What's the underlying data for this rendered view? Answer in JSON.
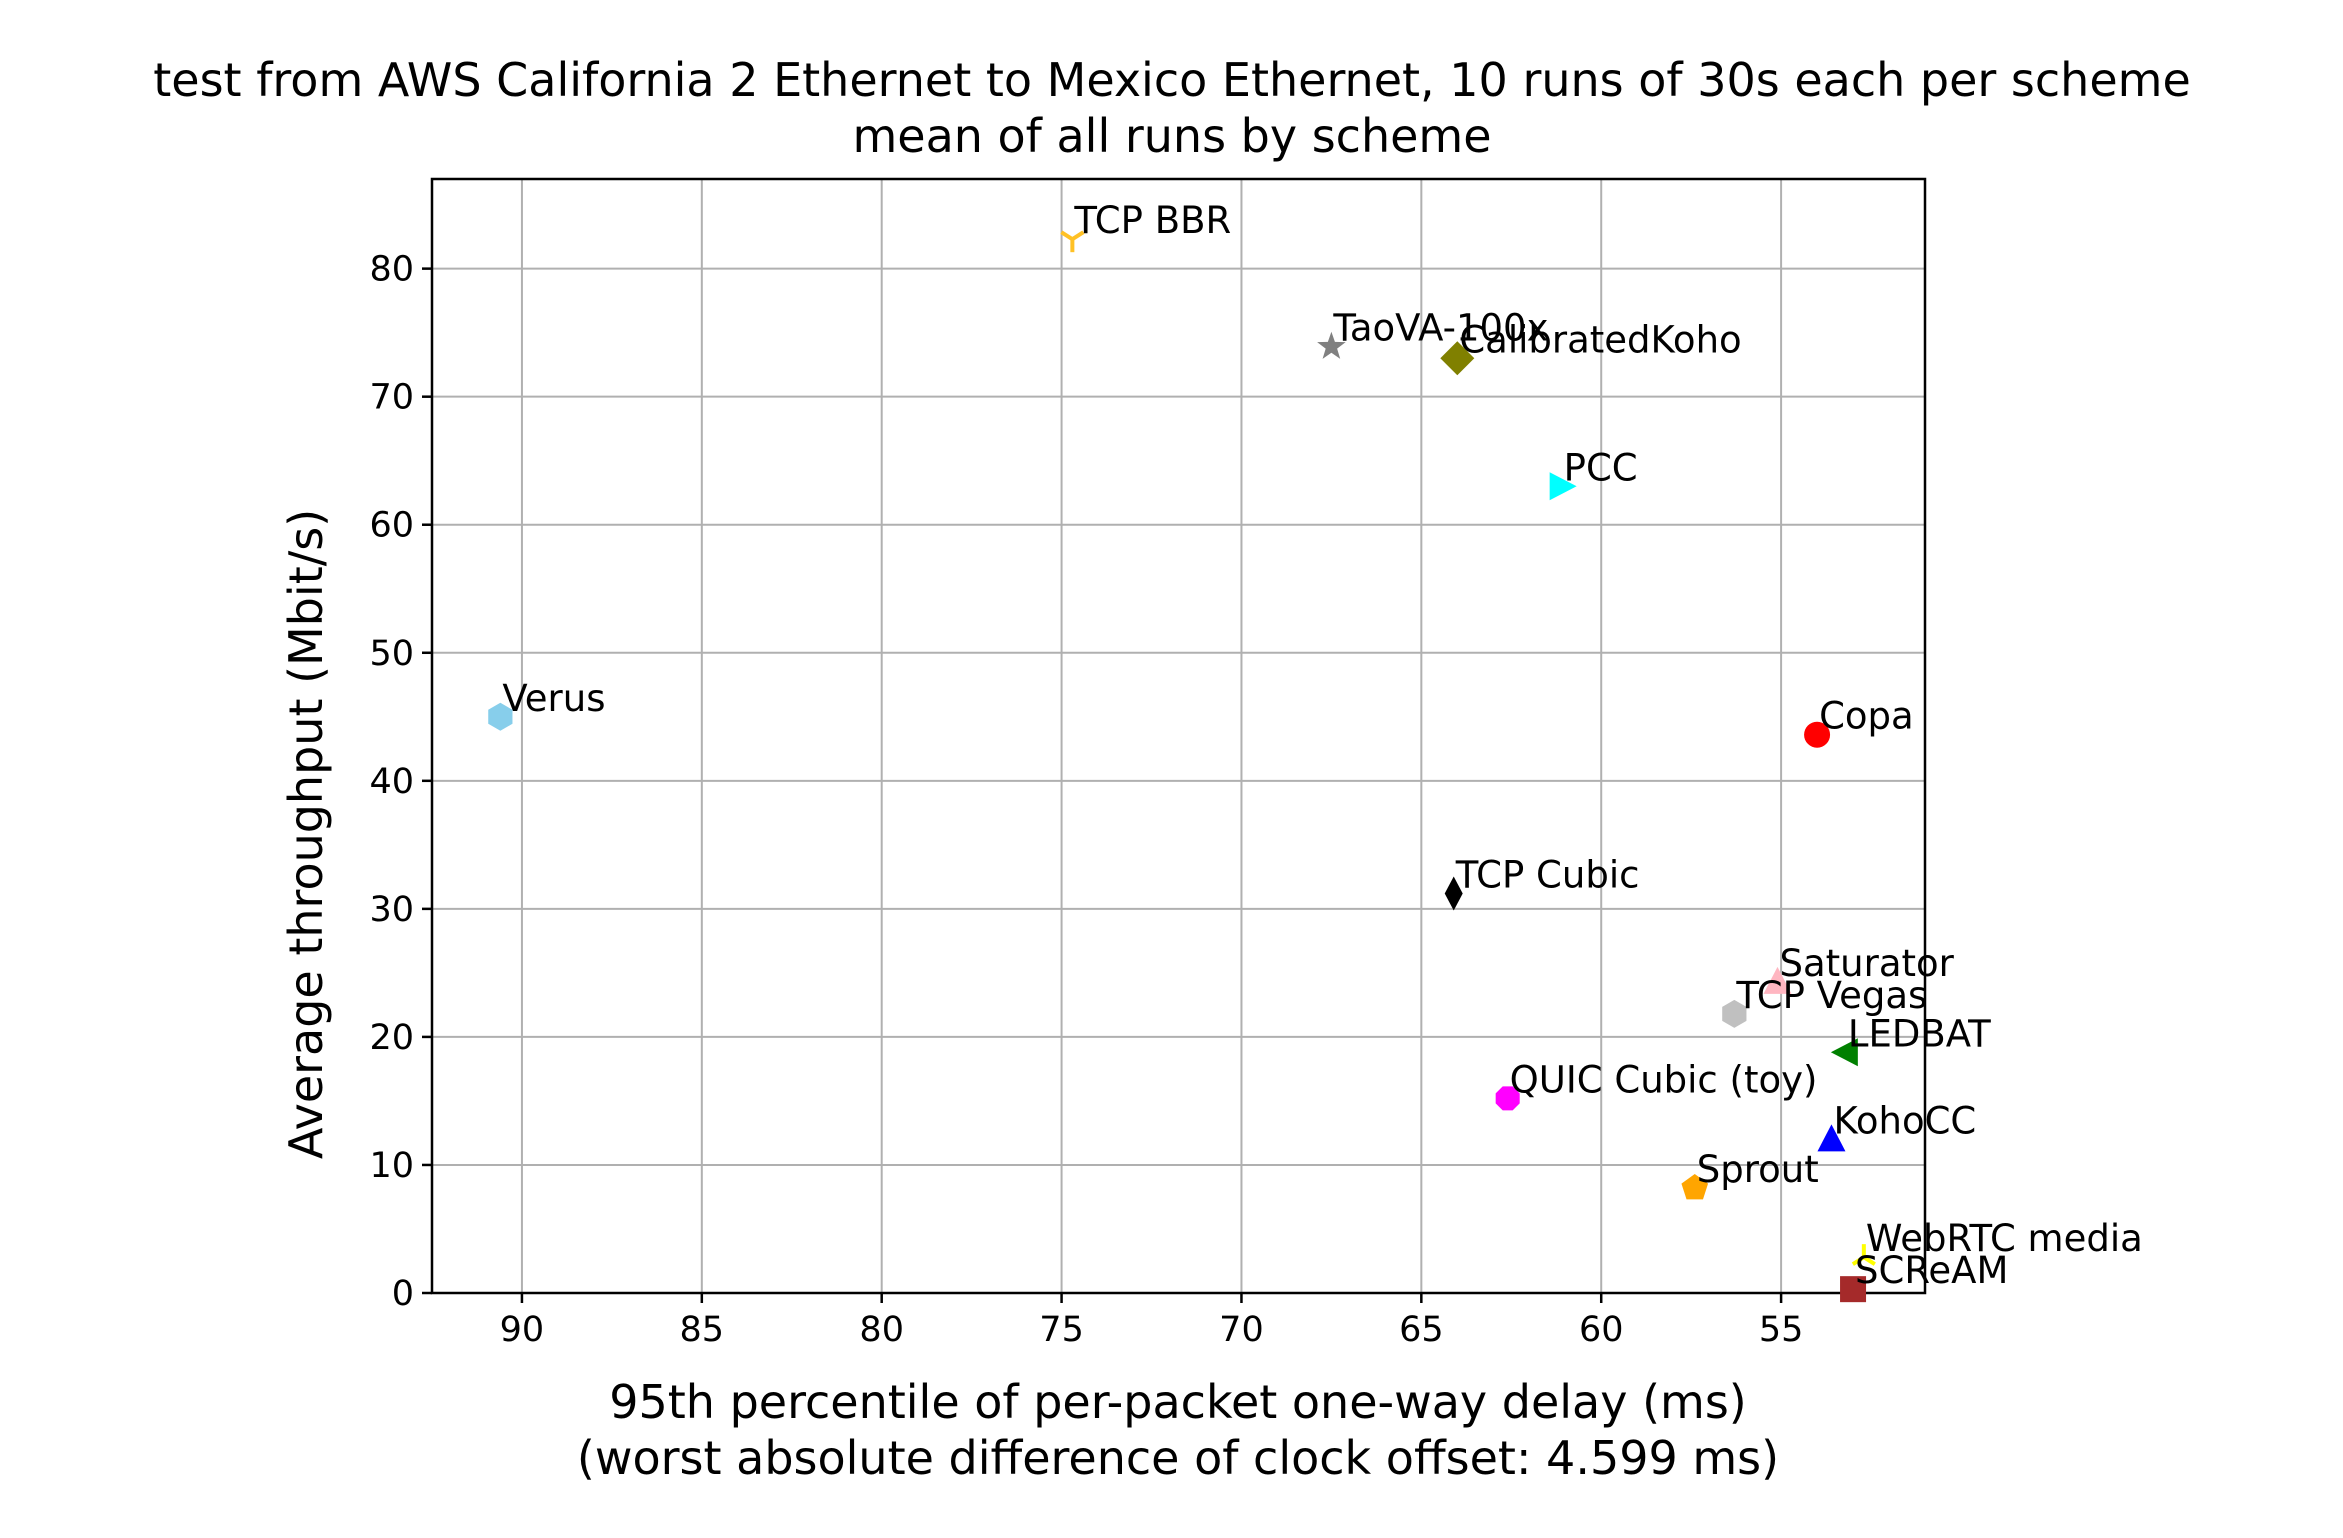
{
  "chart_data": {
    "type": "scatter",
    "title": "test from AWS California 2 Ethernet to Mexico Ethernet, 10 runs of 30s each per scheme",
    "subtitle": "mean of all runs by scheme",
    "xlabel": "95th percentile of per-packet one-way delay (ms)",
    "xlabel2": "(worst absolute difference of clock offset: 4.599 ms)",
    "ylabel": "Average throughput (Mbit/s)",
    "xlim": [
      92.5,
      51.0
    ],
    "ylim": [
      0,
      87
    ],
    "x_inverted": true,
    "grid": true,
    "x_ticks": [
      "90",
      "85",
      "80",
      "75",
      "70",
      "65",
      "60",
      "55"
    ],
    "y_ticks": [
      "0",
      "10",
      "20",
      "30",
      "40",
      "50",
      "60",
      "70",
      "80"
    ],
    "points": [
      {
        "name": "TCP BBR",
        "x": 74.7,
        "y": 82.3,
        "marker": "tri_down",
        "color": "#ffc125"
      },
      {
        "name": "TaoVA-100x",
        "x": 67.5,
        "y": 73.9,
        "marker": "star",
        "color": "#808080"
      },
      {
        "name": "CalibratedKoho",
        "x": 64.0,
        "y": 73.0,
        "marker": "diamond",
        "color": "#808000"
      },
      {
        "name": "PCC",
        "x": 61.1,
        "y": 63.0,
        "marker": "triangle_right",
        "color": "#00ffff"
      },
      {
        "name": "Verus",
        "x": 90.6,
        "y": 45.0,
        "marker": "hexagon",
        "color": "#87ceeb"
      },
      {
        "name": "Copa",
        "x": 54.0,
        "y": 43.6,
        "marker": "circle",
        "color": "#ff0000"
      },
      {
        "name": "TCP Cubic",
        "x": 64.1,
        "y": 31.2,
        "marker": "thin_diamond",
        "color": "#000000"
      },
      {
        "name": "Saturator",
        "x": 55.1,
        "y": 24.3,
        "marker": "triangle_up",
        "color": "#ffb6c1"
      },
      {
        "name": "TCP Vegas",
        "x": 56.3,
        "y": 21.8,
        "marker": "hexagon",
        "color": "#c0c0c0"
      },
      {
        "name": "LEDBAT",
        "x": 53.2,
        "y": 18.8,
        "marker": "triangle_left",
        "color": "#008000"
      },
      {
        "name": "QUIC Cubic (toy)",
        "x": 62.6,
        "y": 15.2,
        "marker": "octagon",
        "color": "#ff00ff"
      },
      {
        "name": "KohoCC",
        "x": 53.6,
        "y": 12.0,
        "marker": "triangle_up",
        "color": "#0000ff"
      },
      {
        "name": "Sprout",
        "x": 57.4,
        "y": 8.2,
        "marker": "pentagon",
        "color": "#ffa500"
      },
      {
        "name": "WebRTC media",
        "x": 52.7,
        "y": 2.8,
        "marker": "tri_up",
        "color": "#ffff00"
      },
      {
        "name": "SCReAM",
        "x": 53.0,
        "y": 0.3,
        "marker": "square",
        "color": "#a52a2a"
      }
    ]
  }
}
